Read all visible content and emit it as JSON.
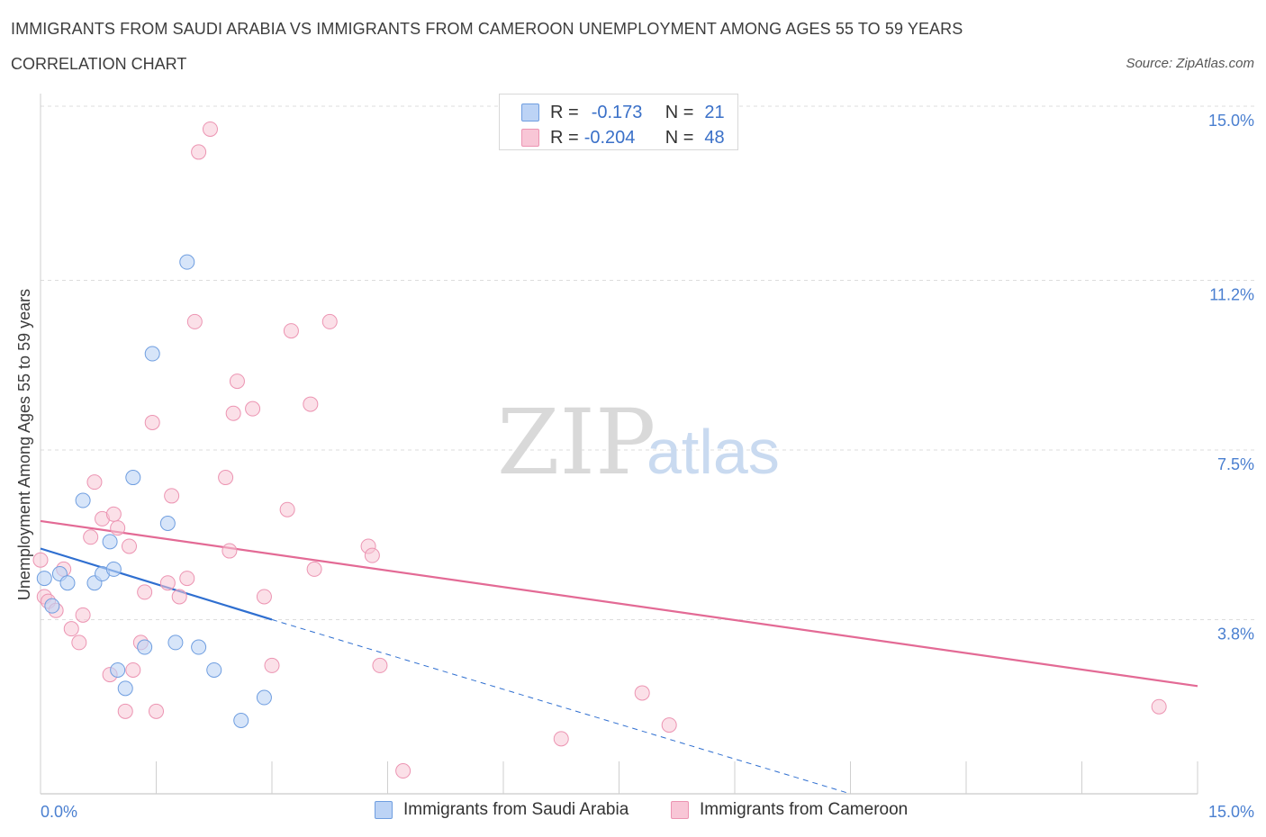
{
  "header": {
    "title": "IMMIGRANTS FROM SAUDI ARABIA VS IMMIGRANTS FROM CAMEROON UNEMPLOYMENT AMONG AGES 55 TO 59 YEARS",
    "subtitle": "CORRELATION CHART",
    "source": "Source: ZipAtlas.com"
  },
  "watermark": {
    "zip": "ZIP",
    "atlas": "atlas"
  },
  "colors": {
    "saudi_fill": "#bcd3f5",
    "saudi_stroke": "#6f9ee0",
    "saudi_line": "#2f6fd0",
    "cameroon_fill": "#f8c6d6",
    "cameroon_stroke": "#ec94b2",
    "cameroon_line": "#e36a95",
    "axis_label": "#4a7fd0",
    "grid": "#dddddd"
  },
  "legend": {
    "rows": [
      {
        "r_label": "R =",
        "r_value": "-0.173",
        "n_label": "N =",
        "n_value": "21"
      },
      {
        "r_label": "R =",
        "r_value": "-0.204",
        "n_label": "N =",
        "n_value": "48"
      }
    ],
    "series_names": [
      "Immigrants from Saudi Arabia",
      "Immigrants from Cameroon"
    ]
  },
  "chart_data": {
    "type": "scatter",
    "title": "IMMIGRANTS FROM SAUDI ARABIA VS IMMIGRANTS FROM CAMEROON UNEMPLOYMENT AMONG AGES 55 TO 59 YEARS",
    "xlabel": "",
    "ylabel": "Unemployment Among Ages 55 to 59 years",
    "xlim": [
      0,
      15
    ],
    "ylim": [
      0,
      15
    ],
    "x_tick_labels": [
      "0.0%",
      "15.0%"
    ],
    "y_ticks": [
      3.8,
      7.5,
      11.2,
      15.0
    ],
    "y_tick_labels": [
      "3.8%",
      "7.5%",
      "11.2%",
      "15.0%"
    ],
    "grid": true,
    "legend_position": "top-center",
    "series": [
      {
        "name": "Immigrants from Saudi Arabia",
        "r": -0.173,
        "n": 21,
        "points": [
          [
            0.05,
            4.7
          ],
          [
            0.15,
            4.1
          ],
          [
            0.25,
            4.8
          ],
          [
            0.35,
            4.6
          ],
          [
            0.55,
            6.4
          ],
          [
            0.7,
            4.6
          ],
          [
            0.8,
            4.8
          ],
          [
            0.9,
            5.5
          ],
          [
            0.95,
            4.9
          ],
          [
            1.0,
            2.7
          ],
          [
            1.1,
            2.3
          ],
          [
            1.2,
            6.9
          ],
          [
            1.35,
            3.2
          ],
          [
            1.45,
            9.6
          ],
          [
            1.65,
            5.9
          ],
          [
            1.75,
            3.3
          ],
          [
            1.9,
            11.6
          ],
          [
            2.05,
            3.2
          ],
          [
            2.25,
            2.7
          ],
          [
            2.6,
            1.6
          ],
          [
            2.9,
            2.1
          ]
        ],
        "trend": {
          "x": [
            0.0,
            3.0
          ],
          "y": [
            5.35,
            3.8
          ]
        },
        "trend_extension": {
          "x": [
            3.0,
            10.5
          ],
          "y": [
            3.8,
            0.0
          ]
        }
      },
      {
        "name": "Immigrants from Cameroon",
        "r": -0.204,
        "n": 48,
        "points": [
          [
            0.05,
            4.3
          ],
          [
            0.1,
            4.2
          ],
          [
            0.2,
            4.0
          ],
          [
            0.3,
            4.9
          ],
          [
            0.4,
            3.6
          ],
          [
            0.5,
            3.3
          ],
          [
            0.55,
            3.9
          ],
          [
            0.65,
            5.6
          ],
          [
            0.7,
            6.8
          ],
          [
            0.8,
            6.0
          ],
          [
            0.9,
            2.6
          ],
          [
            0.95,
            6.1
          ],
          [
            1.0,
            5.8
          ],
          [
            1.1,
            1.8
          ],
          [
            1.15,
            5.4
          ],
          [
            1.2,
            2.7
          ],
          [
            1.3,
            3.3
          ],
          [
            1.35,
            4.4
          ],
          [
            1.45,
            8.1
          ],
          [
            1.5,
            1.8
          ],
          [
            1.65,
            4.6
          ],
          [
            1.7,
            6.5
          ],
          [
            1.8,
            4.3
          ],
          [
            1.9,
            4.7
          ],
          [
            2.0,
            10.3
          ],
          [
            2.05,
            14.0
          ],
          [
            2.2,
            14.5
          ],
          [
            2.4,
            6.9
          ],
          [
            2.45,
            5.3
          ],
          [
            2.5,
            8.3
          ],
          [
            2.55,
            9.0
          ],
          [
            2.75,
            8.4
          ],
          [
            2.9,
            4.3
          ],
          [
            3.0,
            2.8
          ],
          [
            3.2,
            6.2
          ],
          [
            3.25,
            10.1
          ],
          [
            3.5,
            8.5
          ],
          [
            3.55,
            4.9
          ],
          [
            3.75,
            10.3
          ],
          [
            4.25,
            5.4
          ],
          [
            4.3,
            5.2
          ],
          [
            4.4,
            2.8
          ],
          [
            4.7,
            0.5
          ],
          [
            6.75,
            1.2
          ],
          [
            7.8,
            2.2
          ],
          [
            8.15,
            1.5
          ],
          [
            14.5,
            1.9
          ],
          [
            0.0,
            5.1
          ]
        ],
        "trend": {
          "x": [
            0.0,
            15.0
          ],
          "y": [
            5.95,
            2.35
          ]
        }
      }
    ]
  }
}
